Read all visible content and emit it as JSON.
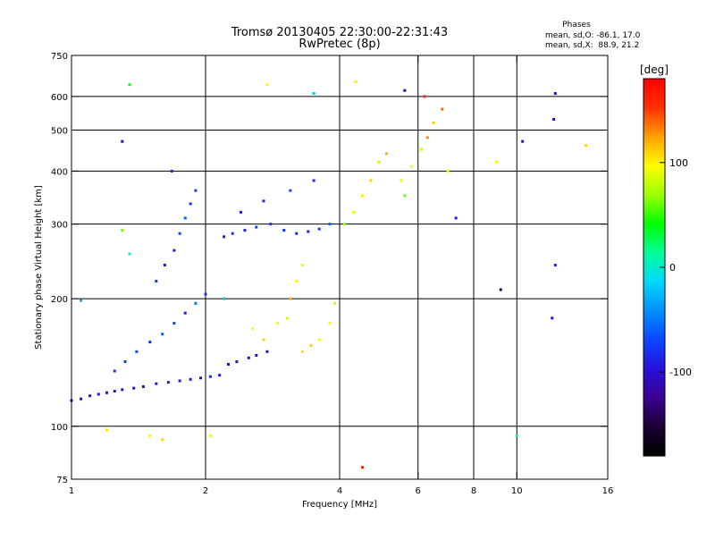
{
  "header": {
    "title": "Tromsø 20130405 22:30:00-22:31:43",
    "subtitle": "RwPretec (8p)"
  },
  "stats_box": {
    "heading": "Phases",
    "line_o": "mean, sd,O: -86.1, 17.0",
    "line_x": "mean, sd,X:  88.9, 21.2"
  },
  "chart_data": {
    "type": "scatter",
    "xlabel": "Frequency [MHz]",
    "ylabel": "Stationary phase Virtual Height [km]",
    "xscale": "log",
    "yscale": "log",
    "xlim": [
      1,
      16
    ],
    "ylim": [
      75,
      750
    ],
    "xticks": [
      1,
      2,
      4,
      6,
      8,
      10,
      16
    ],
    "xtick_labels": [
      "1",
      "2",
      "4",
      "6",
      "8",
      "10",
      "16"
    ],
    "xgrid": [
      2,
      4,
      6,
      8,
      10
    ],
    "yticks": [
      75,
      100,
      200,
      300,
      400,
      500,
      600,
      750
    ],
    "ytick_labels": [
      "75",
      "100",
      "200",
      "300",
      "400",
      "500",
      "600",
      "750"
    ],
    "ygrid": [
      100,
      200,
      300,
      400,
      500,
      600
    ],
    "grid": true,
    "colorbar": {
      "label": "[deg]",
      "range": [
        -180,
        180
      ],
      "ticks": [
        100,
        0,
        -100
      ],
      "tick_labels": [
        "100",
        "0",
        "-100"
      ],
      "colormap": [
        "#000000",
        "#1a0033",
        "#3c0090",
        "#2810d8",
        "#0a46ff",
        "#0090ff",
        "#00d8ff",
        "#00ff9a",
        "#00ff00",
        "#9cff00",
        "#ffff00",
        "#ffa000",
        "#ff3000",
        "#ff0000"
      ]
    },
    "series": [
      {
        "values": [
          [
            1.0,
            115,
            -100
          ],
          [
            1.05,
            116,
            -95
          ],
          [
            1.1,
            118,
            -105
          ],
          [
            1.15,
            119,
            -98
          ],
          [
            1.2,
            120,
            -110
          ],
          [
            1.25,
            121,
            -100
          ],
          [
            1.3,
            122,
            -96
          ],
          [
            1.38,
            123,
            -104
          ],
          [
            1.45,
            124,
            -100
          ],
          [
            1.55,
            126,
            -92
          ],
          [
            1.65,
            127,
            -88
          ],
          [
            1.75,
            128,
            -95
          ],
          [
            1.85,
            129,
            -90
          ],
          [
            1.95,
            130,
            -100
          ],
          [
            2.05,
            131,
            -85
          ],
          [
            2.15,
            132,
            -92
          ],
          [
            1.25,
            135,
            -80
          ],
          [
            1.32,
            142,
            -75
          ],
          [
            1.4,
            150,
            -70
          ],
          [
            1.5,
            158,
            -85
          ],
          [
            1.6,
            165,
            -60
          ],
          [
            1.7,
            175,
            -70
          ],
          [
            1.8,
            185,
            -90
          ],
          [
            1.9,
            195,
            -50
          ],
          [
            2.0,
            205,
            -80
          ],
          [
            1.55,
            220,
            -75
          ],
          [
            1.62,
            240,
            -95
          ],
          [
            1.7,
            260,
            -85
          ],
          [
            1.75,
            285,
            -70
          ],
          [
            1.8,
            310,
            -60
          ],
          [
            1.85,
            335,
            -80
          ],
          [
            1.9,
            360,
            -75
          ],
          [
            1.68,
            400,
            -90
          ],
          [
            2.25,
            140,
            -110
          ],
          [
            2.35,
            142,
            -100
          ],
          [
            2.5,
            145,
            -105
          ],
          [
            2.6,
            147,
            -100
          ],
          [
            2.75,
            150,
            -108
          ],
          [
            2.2,
            280,
            -92
          ],
          [
            2.3,
            285,
            -80
          ],
          [
            2.45,
            290,
            -88
          ],
          [
            2.6,
            295,
            -70
          ],
          [
            2.8,
            300,
            -78
          ],
          [
            3.0,
            290,
            -82
          ],
          [
            3.2,
            285,
            -86
          ],
          [
            3.4,
            288,
            -90
          ],
          [
            3.6,
            292,
            -75
          ],
          [
            3.8,
            300,
            -60
          ],
          [
            2.4,
            320,
            -100
          ],
          [
            2.7,
            340,
            -90
          ],
          [
            3.1,
            360,
            -70
          ],
          [
            3.5,
            380,
            -85
          ],
          [
            2.55,
            170,
            95
          ],
          [
            2.7,
            160,
            110
          ],
          [
            2.9,
            175,
            100
          ],
          [
            3.05,
            180,
            85
          ],
          [
            3.1,
            200,
            120
          ],
          [
            3.2,
            220,
            100
          ],
          [
            3.3,
            240,
            90
          ],
          [
            3.3,
            150,
            105
          ],
          [
            3.45,
            155,
            110
          ],
          [
            3.6,
            160,
            95
          ],
          [
            3.8,
            175,
            100
          ],
          [
            3.9,
            195,
            80
          ],
          [
            4.1,
            300,
            70
          ],
          [
            4.3,
            320,
            90
          ],
          [
            4.5,
            350,
            100
          ],
          [
            4.7,
            380,
            110
          ],
          [
            4.9,
            420,
            80
          ],
          [
            5.1,
            440,
            120
          ],
          [
            5.5,
            380,
            90
          ],
          [
            5.6,
            350,
            60
          ],
          [
            5.8,
            410,
            100
          ],
          [
            6.1,
            450,
            85
          ],
          [
            6.3,
            480,
            130
          ],
          [
            6.5,
            520,
            110
          ],
          [
            6.8,
            560,
            140
          ],
          [
            5.6,
            620,
            -120
          ],
          [
            6.2,
            600,
            160
          ],
          [
            7.3,
            310,
            -90
          ],
          [
            7.0,
            400,
            90
          ],
          [
            9.0,
            420,
            100
          ],
          [
            9.2,
            210,
            -140
          ],
          [
            10.3,
            470,
            -100
          ],
          [
            12.2,
            610,
            -110
          ],
          [
            12.1,
            530,
            -100
          ],
          [
            12.2,
            240,
            -90
          ],
          [
            12.0,
            180,
            -95
          ],
          [
            14.3,
            460,
            110
          ],
          [
            1.35,
            640,
            40
          ],
          [
            1.3,
            470,
            -100
          ],
          [
            2.75,
            640,
            100
          ],
          [
            3.5,
            610,
            -20
          ],
          [
            1.5,
            95,
            100
          ],
          [
            1.6,
            93,
            110
          ],
          [
            2.05,
            95,
            100
          ],
          [
            1.2,
            98,
            105
          ],
          [
            10.0,
            95,
            20
          ],
          [
            4.5,
            80,
            160
          ],
          [
            4.35,
            650,
            100
          ],
          [
            2.2,
            200,
            -20
          ],
          [
            1.05,
            198,
            -30
          ],
          [
            1.3,
            290,
            60
          ],
          [
            1.35,
            255,
            0
          ]
        ]
      }
    ]
  }
}
